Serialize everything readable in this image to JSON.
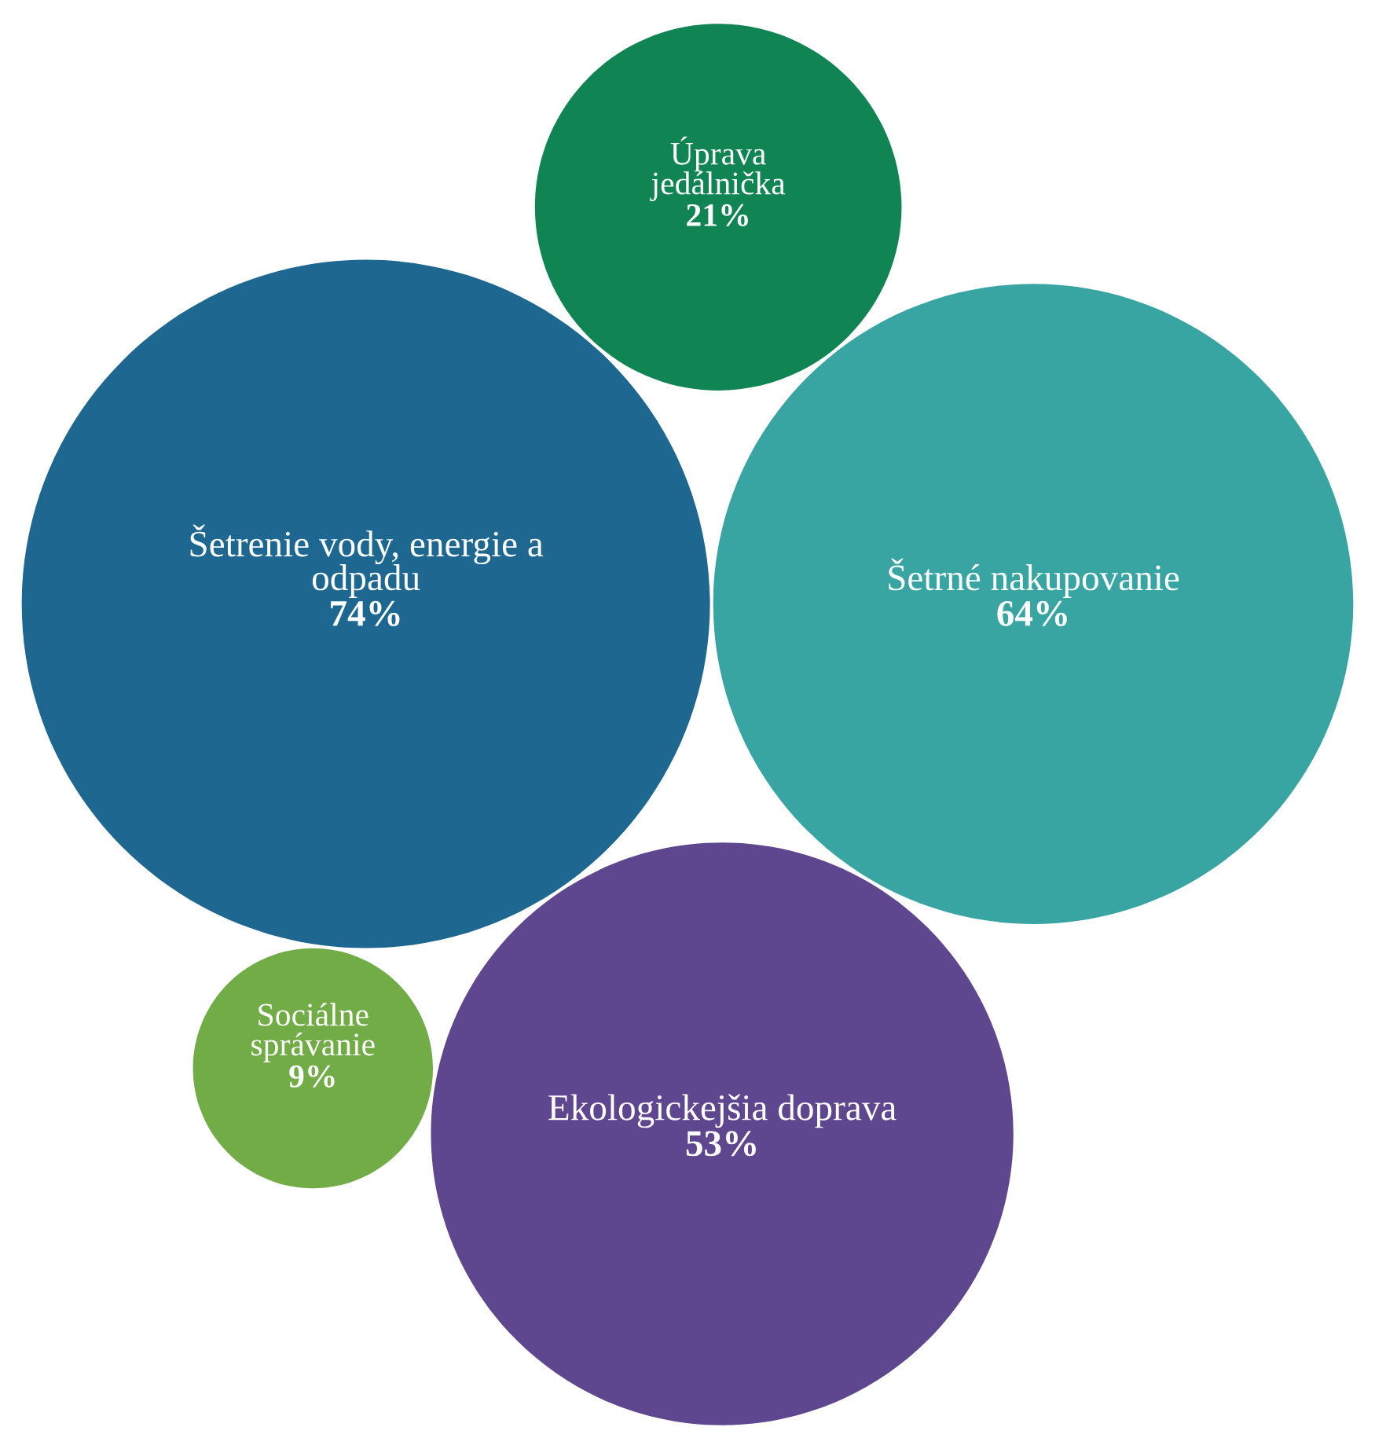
{
  "chart_data": {
    "type": "other",
    "categories": [
      "Šetrenie vody, energie a\nodpadu",
      "Šetrné nakupovanie",
      "Ekologickejšia doprava",
      "Úprava\njedálnička",
      "Sociálne\nsprávanie"
    ],
    "values": [
      74,
      64,
      53,
      21,
      9
    ],
    "value_labels": [
      "74%",
      "64%",
      "53%",
      "21%",
      "9%"
    ],
    "colors": [
      "#1d6791",
      "#38a5a3",
      "#5e478e",
      "#108452",
      "#72ac47"
    ]
  }
}
